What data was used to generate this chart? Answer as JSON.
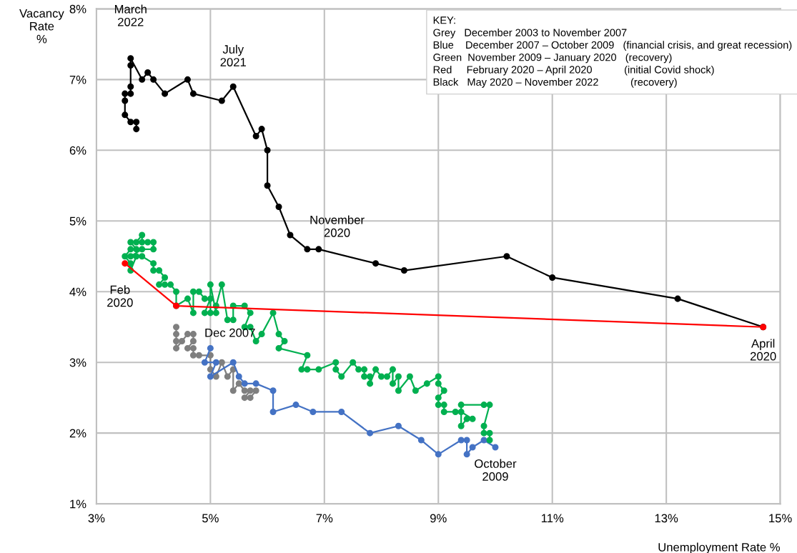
{
  "chart_data": {
    "type": "line",
    "xlabel": "Unemployment Rate %",
    "ylabel": "Vacancy\nRate\n%",
    "xlim": [
      3,
      15
    ],
    "xticks": [
      {
        "value": 3,
        "label": "3%"
      },
      {
        "value": 5,
        "label": "5%"
      },
      {
        "value": 7,
        "label": "7%"
      },
      {
        "value": 9,
        "label": "9%"
      },
      {
        "value": 11,
        "label": "11%"
      },
      {
        "value": 13,
        "label": "13%"
      },
      {
        "value": 15,
        "label": "15%"
      }
    ],
    "ylim": [
      1,
      8
    ],
    "yticks": [
      {
        "value": 1,
        "label": "1%"
      },
      {
        "value": 2,
        "label": "2%"
      },
      {
        "value": 3,
        "label": "3%"
      },
      {
        "value": 4,
        "label": "4%"
      },
      {
        "value": 5,
        "label": "5%"
      },
      {
        "value": 6,
        "label": "6%"
      },
      {
        "value": 7,
        "label": "7%"
      },
      {
        "value": 8,
        "label": "8%"
      }
    ],
    "grid": true,
    "marker": "circle",
    "line_style": "solid",
    "legend": false,
    "series": [
      {
        "color": "#7f7f7f",
        "x": [
          5.8,
          5.7,
          5.6,
          5.7,
          5.6,
          5.5,
          5.4,
          5.4,
          5.3,
          5.2,
          5.1,
          5.0,
          5.0,
          4.8,
          4.7,
          4.7,
          4.6,
          4.7,
          4.7,
          4.6,
          4.5,
          4.4,
          4.4,
          4.4,
          4.4
        ],
        "values": [
          2.6,
          2.5,
          2.5,
          2.6,
          2.6,
          2.7,
          2.6,
          2.9,
          2.8,
          3.0,
          2.8,
          2.9,
          3.1,
          3.1,
          3.1,
          3.2,
          3.2,
          3.3,
          3.4,
          3.4,
          3.3,
          3.2,
          3.3,
          3.4,
          3.5
        ]
      },
      {
        "color": "#4472c4",
        "x": [
          5.0,
          4.9,
          5.1,
          5.0,
          5.4,
          5.5,
          5.6,
          5.8,
          6.1,
          6.1,
          6.5,
          6.8,
          7.3,
          7.8,
          8.3,
          8.7,
          9.0,
          9.4,
          9.5,
          9.5,
          9.6,
          9.8,
          10.0
        ],
        "values": [
          3.2,
          3.0,
          3.0,
          2.8,
          3.0,
          2.8,
          2.7,
          2.7,
          2.6,
          2.3,
          2.4,
          2.3,
          2.3,
          2.0,
          2.1,
          1.9,
          1.7,
          1.9,
          1.9,
          1.7,
          1.8,
          1.9,
          1.8
        ]
      },
      {
        "color": "#00b050",
        "x": [
          9.9,
          9.9,
          9.8,
          9.8,
          9.9,
          9.8,
          9.4,
          9.4,
          9.5,
          9.6,
          9.4,
          9.3,
          9.1,
          9.1,
          9.0,
          9.0,
          9.1,
          9.0,
          9.0,
          8.8,
          8.6,
          8.5,
          8.3,
          8.3,
          8.2,
          8.2,
          8.1,
          8.0,
          7.9,
          7.8,
          7.8,
          7.7,
          7.7,
          7.6,
          7.5,
          7.3,
          7.2,
          7.2,
          6.9,
          6.7,
          6.6,
          6.7,
          6.2,
          6.3,
          6.2,
          6.1,
          5.9,
          5.8,
          5.7,
          5.6,
          5.7,
          5.6,
          5.4,
          5.4,
          5.3,
          5.2,
          5.1,
          5.1,
          5.0,
          5.0,
          4.9,
          5.0,
          4.9,
          4.8,
          4.7,
          4.7,
          4.6,
          4.4,
          4.4,
          4.3,
          4.2,
          4.1,
          4.2,
          4.1,
          4.0,
          4.0,
          3.8,
          3.7,
          3.6,
          3.6,
          3.5,
          3.6,
          3.7,
          3.6,
          3.7,
          3.8,
          3.8,
          3.9,
          4.0,
          4.0,
          3.8,
          3.6
        ],
        "values": [
          1.9,
          2.0,
          2.0,
          2.1,
          2.4,
          2.4,
          2.4,
          2.1,
          2.2,
          2.2,
          2.3,
          2.3,
          2.3,
          2.4,
          2.4,
          2.5,
          2.6,
          2.7,
          2.8,
          2.7,
          2.6,
          2.8,
          2.6,
          2.8,
          2.7,
          2.9,
          2.8,
          2.8,
          2.9,
          2.7,
          2.8,
          2.8,
          2.9,
          2.9,
          3.0,
          2.8,
          2.9,
          3.0,
          2.9,
          2.9,
          2.9,
          3.1,
          3.2,
          3.3,
          3.4,
          3.7,
          3.4,
          3.3,
          3.5,
          3.5,
          3.7,
          3.8,
          3.8,
          3.6,
          3.6,
          4.1,
          3.8,
          3.7,
          4.1,
          3.7,
          3.7,
          3.9,
          3.9,
          4.0,
          4.0,
          3.7,
          3.9,
          3.8,
          4.0,
          4.1,
          4.1,
          4.1,
          4.2,
          4.3,
          4.3,
          4.4,
          4.5,
          4.5,
          4.3,
          4.4,
          4.5,
          4.6,
          4.6,
          4.7,
          4.7,
          4.8,
          4.7,
          4.7,
          4.7,
          4.6,
          4.6,
          4.5
        ]
      },
      {
        "color": "#000000",
        "x": [
          14.7,
          13.2,
          11.0,
          10.2,
          8.4,
          7.9,
          6.9,
          6.7,
          6.4,
          6.2,
          6.0,
          6.0,
          5.9,
          5.8,
          5.4,
          5.2,
          4.7,
          4.6,
          4.2,
          4.0,
          3.9,
          3.8,
          3.6,
          3.6,
          3.6,
          3.6,
          3.5,
          3.5,
          3.5,
          3.6,
          3.7,
          3.7
        ],
        "values": [
          3.5,
          3.9,
          4.2,
          4.5,
          4.3,
          4.4,
          4.6,
          4.6,
          4.8,
          5.2,
          5.5,
          6.0,
          6.3,
          6.2,
          6.9,
          6.7,
          6.8,
          7.0,
          6.8,
          7.0,
          7.1,
          7.0,
          7.3,
          7.2,
          6.9,
          6.8,
          6.8,
          6.7,
          6.5,
          6.4,
          6.4,
          6.3
        ]
      },
      {
        "color": "#ff0000",
        "x": [
          3.5,
          4.4,
          14.7
        ],
        "values": [
          4.4,
          3.8,
          3.5
        ]
      }
    ],
    "annotations": [
      {
        "text": "March\n2022",
        "x": 3.6,
        "y": 7.3
      },
      {
        "text": "July\n2021",
        "x": 5.4,
        "y": 6.9
      },
      {
        "text": "November\n2020",
        "x": 6.7,
        "y": 4.6
      },
      {
        "text": "Feb\n2020",
        "x": 3.5,
        "y": 4.4
      },
      {
        "text": "Dec 2007",
        "x": 5.0,
        "y": 3.2
      },
      {
        "text": "April\n2020",
        "x": 14.7,
        "y": 3.5
      },
      {
        "text": "October\n2009",
        "x": 10.0,
        "y": 1.8
      },
      "KEY:\nGrey   December 2003 to November 2007\nBlue    December 2007 – October 2009   (financial crisis, and great recession)\nGreen  November 2009 – January 2020   (recovery)\nRed     February 2020 – April 2020           (initial Covid shock)\nBlack   May 2020 – November 2022           (recovery)"
    ]
  }
}
